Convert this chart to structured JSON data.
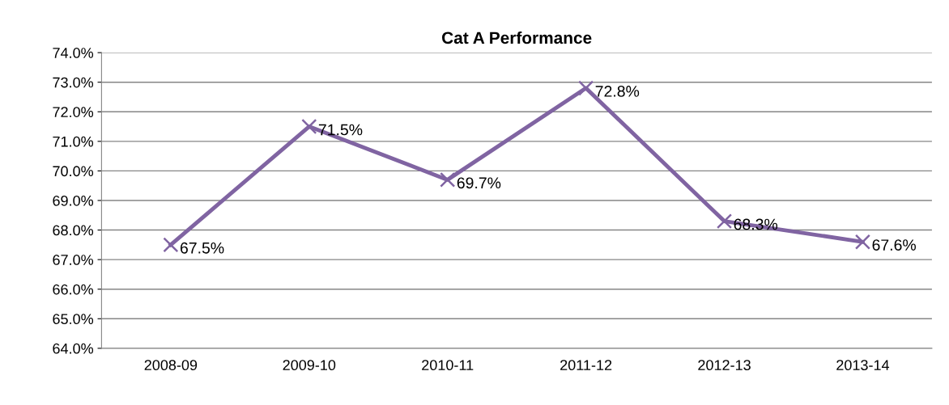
{
  "chart_data": {
    "type": "line",
    "title": "Cat A Performance",
    "categories": [
      "2008-09",
      "2009-10",
      "2010-11",
      "2011-12",
      "2012-13",
      "2013-14"
    ],
    "series": [
      {
        "color": "#8064a2",
        "values": [
          67.5,
          71.5,
          69.7,
          72.8,
          68.3,
          67.6
        ],
        "value_labels": [
          "67.5%",
          "71.5%",
          "69.7%",
          "72.8%",
          "68.3%",
          "67.6%"
        ]
      }
    ],
    "ylim": [
      64,
      74
    ],
    "yticks": [
      {
        "value": 64,
        "label": "64.0%"
      },
      {
        "value": 65,
        "label": "65.0%"
      },
      {
        "value": 66,
        "label": "66.0%"
      },
      {
        "value": 67,
        "label": "67.0%"
      },
      {
        "value": 68,
        "label": "68.0%"
      },
      {
        "value": 69,
        "label": "69.0%"
      },
      {
        "value": 70,
        "label": "70.0%"
      },
      {
        "value": 71,
        "label": "71.0%"
      },
      {
        "value": 72,
        "label": "72.0%"
      },
      {
        "value": 73,
        "label": "73.0%"
      },
      {
        "value": 74,
        "label": "74.0%"
      }
    ],
    "grid": "y",
    "marker": "cross",
    "line_style": "solid"
  }
}
